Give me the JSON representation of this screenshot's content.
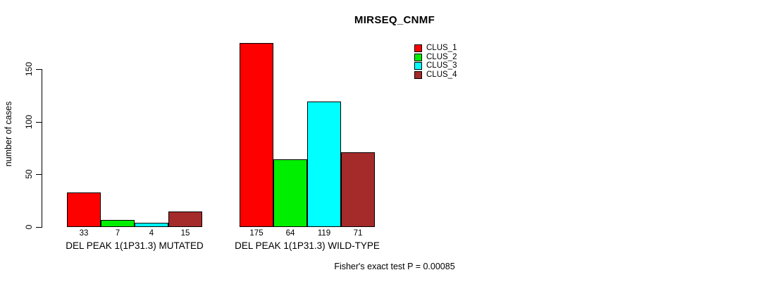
{
  "title": "MIRSEQ_CNMF",
  "ylabel": "number of cases",
  "footnote": "Fisher's exact test P = 0.00085",
  "chart_data": {
    "type": "bar",
    "title": "MIRSEQ_CNMF",
    "xlabel": "",
    "ylabel": "number of cases",
    "categories": [
      "DEL PEAK 1(1P31.3) MUTATED",
      "DEL PEAK 1(1P31.3) WILD-TYPE"
    ],
    "series": [
      {
        "name": "CLUS_1",
        "color": "#FF0000",
        "values": [
          33,
          175
        ]
      },
      {
        "name": "CLUS_2",
        "color": "#00EE00",
        "values": [
          7,
          64
        ]
      },
      {
        "name": "CLUS_3",
        "color": "#00FFFF",
        "values": [
          4,
          119
        ]
      },
      {
        "name": "CLUS_4",
        "color": "#A52A2A",
        "values": [
          15,
          71
        ]
      }
    ],
    "yticks": [
      0,
      50,
      100,
      150
    ],
    "ylim": [
      0,
      175
    ],
    "grid": false,
    "legend_position": "top-right",
    "bar_borders": "#000000",
    "annotation": "Fisher's exact test P = 0.00085"
  }
}
